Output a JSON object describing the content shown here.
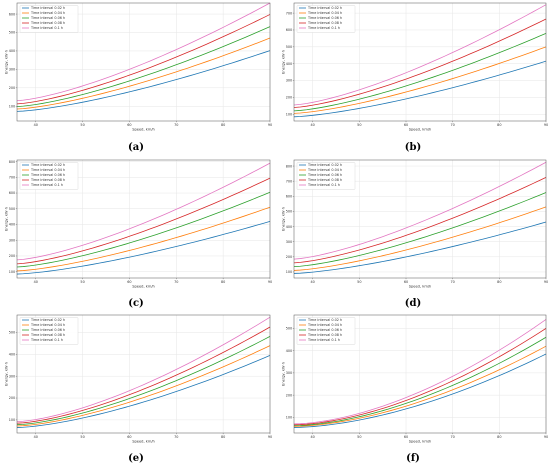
{
  "chart_data": [
    {
      "panel": "(a)",
      "type": "line",
      "xlabel": "Speed, km/h",
      "ylabel": "Energy, kW·h",
      "xlim": [
        36,
        90
      ],
      "ylim": [
        20,
        660
      ],
      "xticks": [
        40,
        50,
        60,
        70,
        80,
        90
      ],
      "yticks": [
        100,
        200,
        300,
        400,
        500,
        600
      ],
      "grid": true,
      "legend": "top-left",
      "series": [
        {
          "name": "Time interval 0.02 h",
          "x": [
            36,
            90
          ],
          "y0": 72,
          "y1": 402,
          "k": 1.4,
          "color": "#1f77b4"
        },
        {
          "name": "Time interval 0.04 h",
          "x": [
            36,
            90
          ],
          "y0": 85,
          "y1": 470,
          "k": 1.4,
          "color": "#ff7f0e"
        },
        {
          "name": "Time interval 0.06 h",
          "x": [
            36,
            90
          ],
          "y0": 98,
          "y1": 532,
          "k": 1.4,
          "color": "#2ca02c"
        },
        {
          "name": "Time interval 0.08 h",
          "x": [
            36,
            90
          ],
          "y0": 113,
          "y1": 598,
          "k": 1.4,
          "color": "#d62728"
        },
        {
          "name": "Time interval 0.1 h",
          "x": [
            36,
            90
          ],
          "y0": 130,
          "y1": 660,
          "k": 1.4,
          "color": "#e377c2"
        }
      ]
    },
    {
      "panel": "(b)",
      "type": "line",
      "xlabel": "Speed, km/h",
      "ylabel": "Energy, kW·h",
      "xlim": [
        36,
        90
      ],
      "ylim": [
        60,
        760
      ],
      "xticks": [
        40,
        50,
        60,
        70,
        80,
        90
      ],
      "yticks": [
        100,
        200,
        300,
        400,
        500,
        600,
        700
      ],
      "grid": true,
      "legend": "top-left",
      "series": [
        {
          "name": "Time interval 0.02 h",
          "x": [
            36,
            90
          ],
          "y0": 85,
          "y1": 415,
          "k": 1.4,
          "color": "#1f77b4"
        },
        {
          "name": "Time interval 0.04 h",
          "x": [
            36,
            90
          ],
          "y0": 105,
          "y1": 500,
          "k": 1.4,
          "color": "#ff7f0e"
        },
        {
          "name": "Time interval 0.06 h",
          "x": [
            36,
            90
          ],
          "y0": 120,
          "y1": 580,
          "k": 1.4,
          "color": "#2ca02c"
        },
        {
          "name": "Time interval 0.08 h",
          "x": [
            36,
            90
          ],
          "y0": 140,
          "y1": 665,
          "k": 1.4,
          "color": "#d62728"
        },
        {
          "name": "Time interval 0.1 h",
          "x": [
            36,
            90
          ],
          "y0": 155,
          "y1": 750,
          "k": 1.4,
          "color": "#e377c2"
        }
      ]
    },
    {
      "panel": "(c)",
      "type": "line",
      "xlabel": "Speed, km/h",
      "ylabel": "Energy, kW·h",
      "xlim": [
        36,
        90
      ],
      "ylim": [
        60,
        810
      ],
      "xticks": [
        40,
        50,
        60,
        70,
        80,
        90
      ],
      "yticks": [
        100,
        200,
        300,
        400,
        500,
        600,
        700,
        800
      ],
      "grid": true,
      "legend": "top-left",
      "series": [
        {
          "name": "Time interval 0.02 h",
          "x": [
            36,
            90
          ],
          "y0": 85,
          "y1": 420,
          "k": 1.4,
          "color": "#1f77b4"
        },
        {
          "name": "Time interval 0.04 h",
          "x": [
            36,
            90
          ],
          "y0": 105,
          "y1": 510,
          "k": 1.4,
          "color": "#ff7f0e"
        },
        {
          "name": "Time interval 0.06 h",
          "x": [
            36,
            90
          ],
          "y0": 130,
          "y1": 605,
          "k": 1.4,
          "color": "#2ca02c"
        },
        {
          "name": "Time interval 0.08 h",
          "x": [
            36,
            90
          ],
          "y0": 150,
          "y1": 695,
          "k": 1.4,
          "color": "#d62728"
        },
        {
          "name": "Time interval 0.1 h",
          "x": [
            36,
            90
          ],
          "y0": 175,
          "y1": 790,
          "k": 1.4,
          "color": "#e377c2"
        }
      ]
    },
    {
      "panel": "(d)",
      "type": "line",
      "xlabel": "Speed, km/h",
      "ylabel": "Energy, kW·h",
      "xlim": [
        36,
        90
      ],
      "ylim": [
        60,
        840
      ],
      "xticks": [
        40,
        50,
        60,
        70,
        80,
        90
      ],
      "yticks": [
        100,
        200,
        300,
        400,
        500,
        600,
        700,
        800
      ],
      "grid": true,
      "legend": "top-left",
      "series": [
        {
          "name": "Time interval 0.02 h",
          "x": [
            36,
            90
          ],
          "y0": 90,
          "y1": 430,
          "k": 1.4,
          "color": "#1f77b4"
        },
        {
          "name": "Time interval 0.04 h",
          "x": [
            36,
            90
          ],
          "y0": 110,
          "y1": 530,
          "k": 1.4,
          "color": "#ff7f0e"
        },
        {
          "name": "Time interval 0.06 h",
          "x": [
            36,
            90
          ],
          "y0": 135,
          "y1": 625,
          "k": 1.4,
          "color": "#2ca02c"
        },
        {
          "name": "Time interval 0.08 h",
          "x": [
            36,
            90
          ],
          "y0": 160,
          "y1": 725,
          "k": 1.4,
          "color": "#d62728"
        },
        {
          "name": "Time interval 0.1 h",
          "x": [
            36,
            90
          ],
          "y0": 185,
          "y1": 825,
          "k": 1.4,
          "color": "#e377c2"
        }
      ]
    },
    {
      "panel": "(e)",
      "type": "line",
      "xlabel": "Speed, km/h",
      "ylabel": "Energy, kW·h",
      "xlim": [
        36,
        90
      ],
      "ylim": [
        40,
        580
      ],
      "xticks": [
        40,
        50,
        60,
        70,
        80,
        90
      ],
      "yticks": [
        100,
        200,
        300,
        400,
        500
      ],
      "grid": true,
      "legend": "top-left",
      "series": [
        {
          "name": "Time interval 0.02 h",
          "x": [
            36,
            90
          ],
          "y0": 65,
          "y1": 395,
          "k": 1.5,
          "color": "#1f77b4"
        },
        {
          "name": "Time interval 0.04 h",
          "x": [
            36,
            90
          ],
          "y0": 72,
          "y1": 440,
          "k": 1.5,
          "color": "#ff7f0e"
        },
        {
          "name": "Time interval 0.06 h",
          "x": [
            36,
            90
          ],
          "y0": 78,
          "y1": 482,
          "k": 1.5,
          "color": "#2ca02c"
        },
        {
          "name": "Time interval 0.08 h",
          "x": [
            36,
            90
          ],
          "y0": 85,
          "y1": 525,
          "k": 1.5,
          "color": "#d62728"
        },
        {
          "name": "Time interval 0.1 h",
          "x": [
            36,
            90
          ],
          "y0": 92,
          "y1": 570,
          "k": 1.5,
          "color": "#e377c2"
        }
      ]
    },
    {
      "panel": "(f)",
      "type": "line",
      "xlabel": "Speed, km/h",
      "ylabel": "Energy, kW·h",
      "xlim": [
        36,
        90
      ],
      "ylim": [
        30,
        560
      ],
      "xticks": [
        40,
        50,
        60,
        70,
        80,
        90
      ],
      "yticks": [
        100,
        200,
        300,
        400,
        500
      ],
      "grid": true,
      "legend": "top-left",
      "series": [
        {
          "name": "Time interval 0.02 h",
          "x": [
            36,
            90
          ],
          "y0": 55,
          "y1": 385,
          "k": 1.7,
          "color": "#1f77b4"
        },
        {
          "name": "Time interval 0.04 h",
          "x": [
            36,
            90
          ],
          "y0": 60,
          "y1": 420,
          "k": 1.7,
          "color": "#ff7f0e"
        },
        {
          "name": "Time interval 0.06 h",
          "x": [
            36,
            90
          ],
          "y0": 63,
          "y1": 460,
          "k": 1.7,
          "color": "#2ca02c"
        },
        {
          "name": "Time interval 0.08 h",
          "x": [
            36,
            90
          ],
          "y0": 67,
          "y1": 500,
          "k": 1.7,
          "color": "#d62728"
        },
        {
          "name": "Time interval 0.1 h",
          "x": [
            36,
            90
          ],
          "y0": 71,
          "y1": 540,
          "k": 1.7,
          "color": "#e377c2"
        }
      ]
    }
  ]
}
